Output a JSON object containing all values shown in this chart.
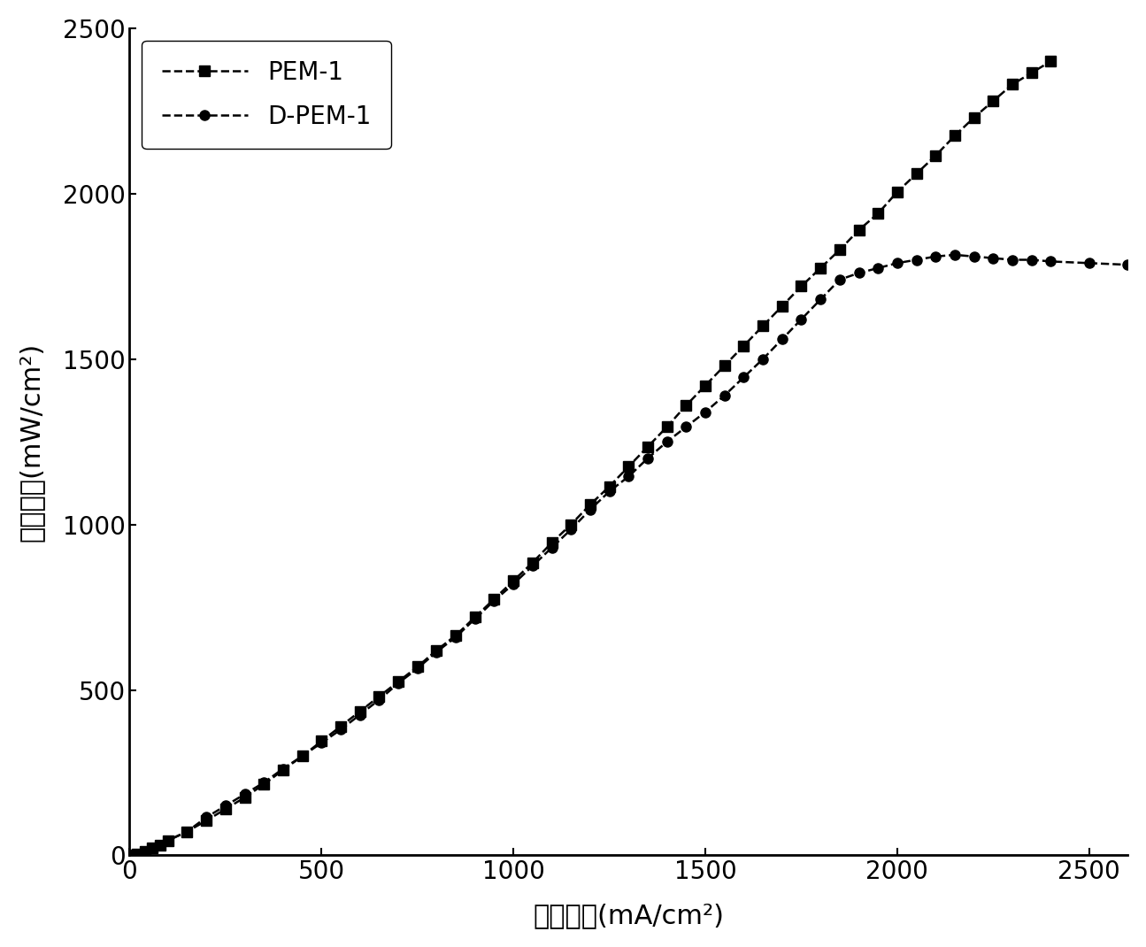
{
  "pem1_x": [
    0,
    20,
    40,
    60,
    80,
    100,
    150,
    200,
    250,
    300,
    350,
    400,
    450,
    500,
    550,
    600,
    650,
    700,
    750,
    800,
    850,
    900,
    950,
    1000,
    1050,
    1100,
    1150,
    1200,
    1250,
    1300,
    1350,
    1400,
    1450,
    1500,
    1550,
    1600,
    1650,
    1700,
    1750,
    1800,
    1850,
    1900,
    1950,
    2000,
    2050,
    2100,
    2150,
    2200,
    2250,
    2300,
    2350,
    2400
  ],
  "pem1_y": [
    0,
    5,
    12,
    22,
    32,
    45,
    72,
    105,
    140,
    175,
    215,
    258,
    300,
    345,
    390,
    435,
    480,
    525,
    570,
    620,
    665,
    720,
    775,
    830,
    885,
    945,
    1000,
    1060,
    1115,
    1175,
    1235,
    1295,
    1360,
    1420,
    1480,
    1540,
    1600,
    1660,
    1720,
    1775,
    1830,
    1890,
    1940,
    2005,
    2060,
    2115,
    2175,
    2230,
    2280,
    2330,
    2365,
    2400
  ],
  "dpem1_x": [
    0,
    20,
    40,
    60,
    80,
    100,
    150,
    200,
    250,
    300,
    350,
    400,
    450,
    500,
    550,
    600,
    650,
    700,
    750,
    800,
    850,
    900,
    950,
    1000,
    1050,
    1100,
    1150,
    1200,
    1250,
    1300,
    1350,
    1400,
    1450,
    1500,
    1550,
    1600,
    1650,
    1700,
    1750,
    1800,
    1850,
    1900,
    1950,
    2000,
    2050,
    2100,
    2150,
    2200,
    2250,
    2300,
    2350,
    2400,
    2500,
    2600
  ],
  "dpem1_y": [
    0,
    5,
    12,
    22,
    32,
    45,
    72,
    115,
    150,
    185,
    220,
    262,
    300,
    340,
    380,
    425,
    470,
    520,
    565,
    615,
    660,
    715,
    770,
    820,
    875,
    930,
    985,
    1045,
    1100,
    1145,
    1200,
    1250,
    1295,
    1340,
    1390,
    1445,
    1500,
    1560,
    1620,
    1680,
    1740,
    1760,
    1775,
    1790,
    1800,
    1810,
    1815,
    1810,
    1805,
    1800,
    1800,
    1795,
    1790,
    1785
  ],
  "xlabel": "电流密度(mA/cm²)",
  "ylabel": "功率密度(mW/cm²)",
  "xlim": [
    0,
    2600
  ],
  "ylim": [
    0,
    2500
  ],
  "xticks": [
    0,
    500,
    1000,
    1500,
    2000,
    2500
  ],
  "yticks": [
    0,
    500,
    1000,
    1500,
    2000,
    2500
  ],
  "legend_pem1": "PEM-1",
  "legend_dpem1": "D-PEM-1",
  "line_color": "#000000",
  "marker_square": "s",
  "marker_circle": "o",
  "linewidth": 1.8,
  "markersize": 8,
  "label_fontsize": 22,
  "tick_fontsize": 20,
  "legend_fontsize": 20
}
